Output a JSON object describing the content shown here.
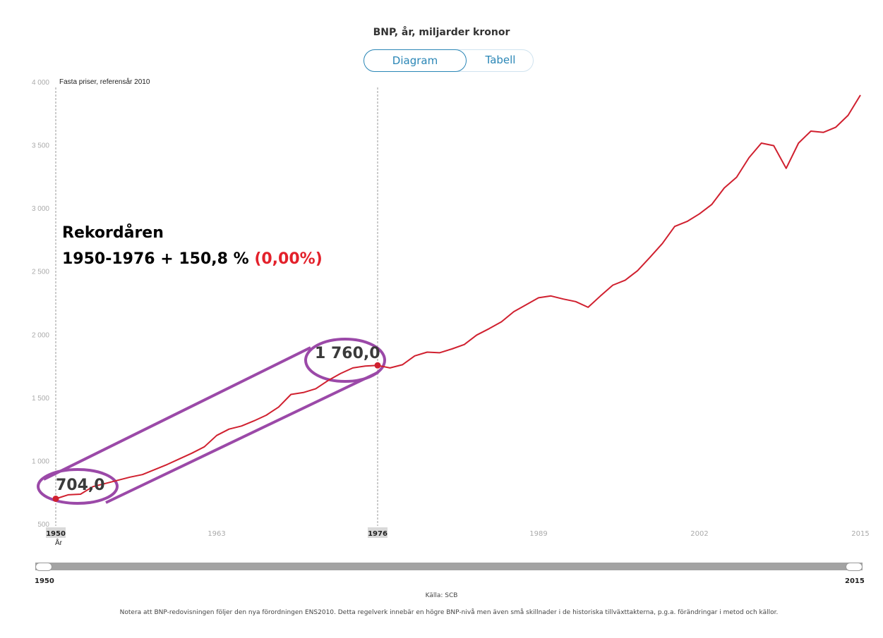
{
  "header": {
    "title": "BNP, år, miljarder kronor",
    "tabs": [
      {
        "label": "Diagram",
        "active": true
      },
      {
        "label": "Tabell",
        "active": false
      }
    ]
  },
  "colors": {
    "line": "#d0202f",
    "accent": "#2a86b6",
    "annotation_highlight": "#e3212b",
    "markup_purple": "#9b49a8"
  },
  "chart_data": {
    "type": "line",
    "title": "BNP, år, miljarder kronor",
    "subtitle": "Fasta priser, referensår 2010",
    "xlabel": "År",
    "ylabel": "",
    "xlim": [
      1950,
      2015
    ],
    "ylim": [
      500,
      4000
    ],
    "y_ticks": [
      500,
      1000,
      1500,
      2000,
      2500,
      3000,
      3500,
      4000
    ],
    "y_tick_labels": [
      "500",
      "1 000",
      "1 500",
      "2 000",
      "2 500",
      "3 000",
      "3 500",
      "4 000"
    ],
    "x_ticks": [
      1950,
      1963,
      1976,
      1989,
      2002,
      2015
    ],
    "x_tick_labels": [
      "1950",
      "1963",
      "1976",
      "1989",
      "2002",
      "2015"
    ],
    "highlighted_x": [
      1950,
      1976
    ],
    "grid": false,
    "x": [
      1950,
      1951,
      1952,
      1953,
      1954,
      1955,
      1956,
      1957,
      1958,
      1959,
      1960,
      1961,
      1962,
      1963,
      1964,
      1965,
      1966,
      1967,
      1968,
      1969,
      1970,
      1971,
      1972,
      1973,
      1974,
      1975,
      1976,
      1977,
      1978,
      1979,
      1980,
      1981,
      1982,
      1983,
      1984,
      1985,
      1986,
      1987,
      1988,
      1989,
      1990,
      1991,
      1992,
      1993,
      1994,
      1995,
      1996,
      1997,
      1998,
      1999,
      2000,
      2001,
      2002,
      2003,
      2004,
      2005,
      2006,
      2007,
      2008,
      2009,
      2010,
      2011,
      2012,
      2013,
      2014,
      2015
    ],
    "series": [
      {
        "name": "BNP",
        "values": [
          704,
          735,
          740,
          800,
          825,
          850,
          875,
          895,
          935,
          975,
          1020,
          1065,
          1115,
          1205,
          1255,
          1280,
          1320,
          1365,
          1430,
          1530,
          1545,
          1575,
          1640,
          1695,
          1740,
          1755,
          1760,
          1740,
          1765,
          1835,
          1865,
          1860,
          1890,
          1925,
          2000,
          2050,
          2105,
          2185,
          2240,
          2295,
          2310,
          2285,
          2265,
          2220,
          2310,
          2395,
          2435,
          2510,
          2615,
          2725,
          2860,
          2900,
          2960,
          3035,
          3165,
          3250,
          3405,
          3520,
          3500,
          3320,
          3520,
          3615,
          3605,
          3645,
          3740,
          3900
        ]
      }
    ],
    "annotations": {
      "heading": "Rekordåren",
      "period": "1950-1976 + 150,8 %",
      "change": "(0,00%)",
      "start_value": "704,0",
      "end_value": "1 760,0"
    }
  },
  "slider": {
    "start_label": "1950",
    "end_label": "2015"
  },
  "footer": {
    "source": "Källa: SCB",
    "note": "Notera att BNP-redovisningen följer den nya förordningen ENS2010. Detta regelverk innebär en högre BNP-nivå men även små skillnader i de historiska tillväxttakterna, p.g.a. förändringar i metod och källor."
  }
}
